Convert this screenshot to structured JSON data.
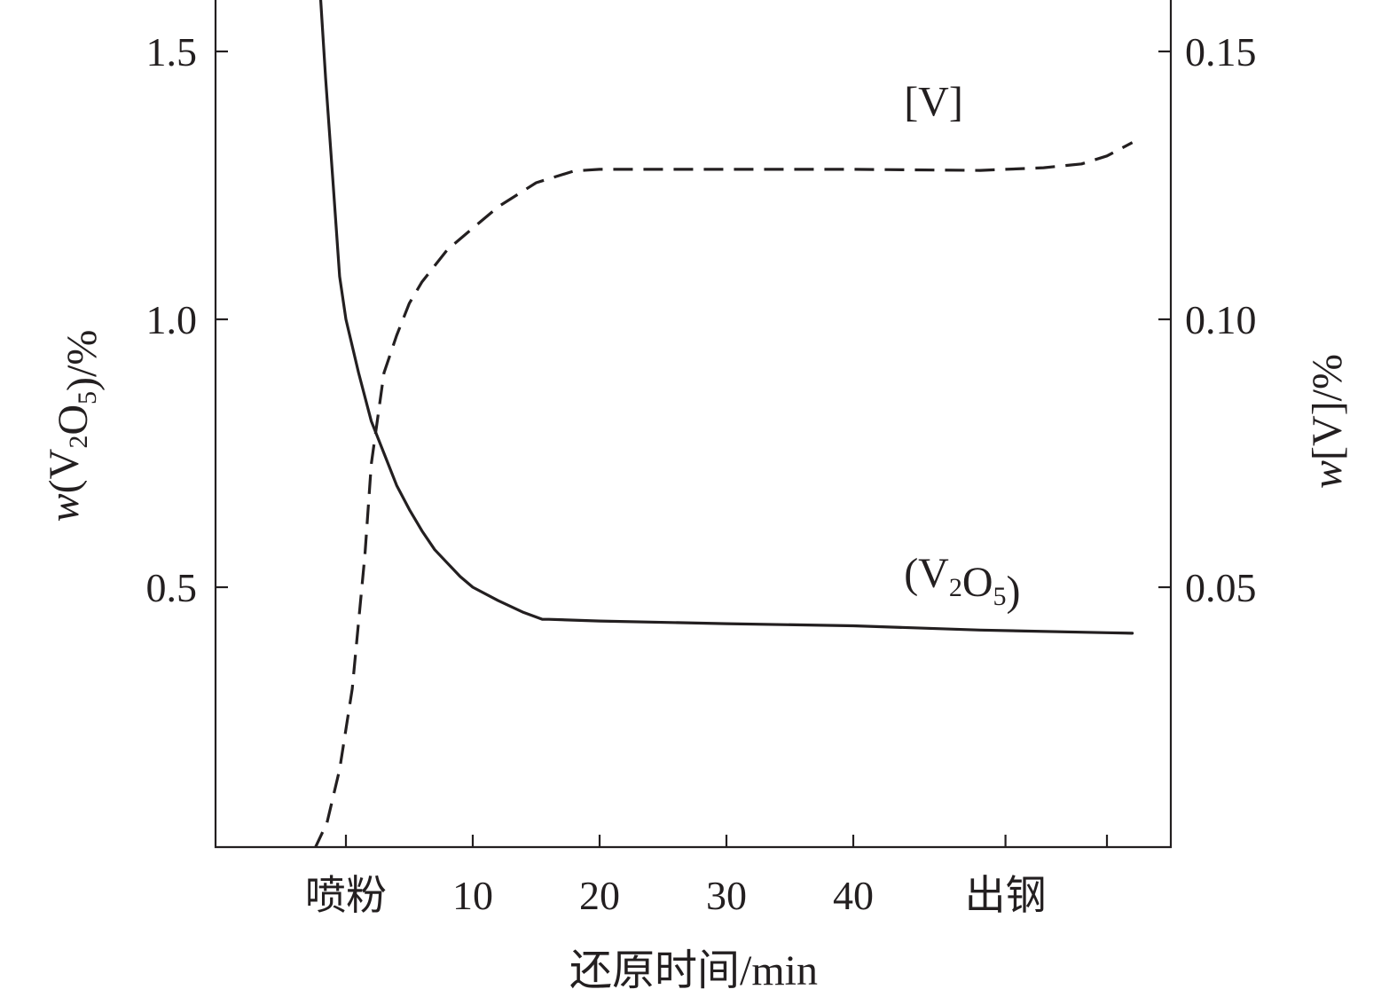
{
  "chart_data": {
    "type": "line",
    "xlabel": "还原时间/min",
    "ylabel_left": "w(V2O5)/%",
    "ylabel_right": "w[V]/%",
    "xlim": [
      -10,
      65
    ],
    "ylim_left": [
      0.01,
      1.6
    ],
    "ylim_right": [
      0.001,
      0.16
    ],
    "x_ticks": [
      {
        "value": 0,
        "label": "喷粉"
      },
      {
        "value": 10,
        "label": "10"
      },
      {
        "value": 20,
        "label": "20"
      },
      {
        "value": 30,
        "label": "30"
      },
      {
        "value": 40,
        "label": "40"
      },
      {
        "value": 52,
        "label": "出钢"
      },
      {
        "value": 60,
        "label": ""
      }
    ],
    "y_ticks_left": [
      {
        "value": 0.5,
        "label": "0.5"
      },
      {
        "value": 1.0,
        "label": "1.0"
      },
      {
        "value": 1.5,
        "label": "1.5"
      }
    ],
    "y_ticks_right": [
      {
        "value": 0.05,
        "label": "0.05"
      },
      {
        "value": 0.1,
        "label": "0.10"
      },
      {
        "value": 0.15,
        "label": "0.15"
      }
    ],
    "series": [
      {
        "name": "(V2O5)",
        "axis": "left",
        "style": "solid",
        "x": [
          -2.0,
          -1.6,
          -1.0,
          -0.5,
          0.0,
          1.0,
          2.0,
          3.0,
          4.0,
          5.0,
          6.0,
          7.0,
          8.0,
          9.0,
          10.0,
          12.0,
          14.0,
          15.5,
          16.0,
          20.0,
          30.0,
          40.0,
          50.0,
          60.0,
          62.0
        ],
        "y": [
          1.6,
          1.45,
          1.25,
          1.08,
          1.0,
          0.9,
          0.81,
          0.75,
          0.69,
          0.645,
          0.605,
          0.57,
          0.545,
          0.52,
          0.5,
          0.475,
          0.453,
          0.44,
          0.44,
          0.437,
          0.432,
          0.428,
          0.42,
          0.415,
          0.414
        ]
      },
      {
        "name": "[V]",
        "axis": "right",
        "style": "dashed",
        "x": [
          -2.5,
          -1.5,
          -0.5,
          0.5,
          1.5,
          2.0,
          3.0,
          4.0,
          5.0,
          6.0,
          8.0,
          10.0,
          12.0,
          15.0,
          18.0,
          20.0,
          30.0,
          40.0,
          50.0,
          55.0,
          58.0,
          60.0,
          62.0
        ],
        "y": [
          0.001,
          0.006,
          0.016,
          0.031,
          0.056,
          0.073,
          0.09,
          0.097,
          0.103,
          0.107,
          0.113,
          0.117,
          0.121,
          0.1255,
          0.1277,
          0.128,
          0.128,
          0.128,
          0.1278,
          0.1283,
          0.129,
          0.1305,
          0.133
        ]
      }
    ],
    "annotations": [
      {
        "key": "v_label",
        "parts": [
          {
            "text": "[V]",
            "sub": false
          }
        ],
        "at_x": 44.0,
        "at_y_right": 0.138
      },
      {
        "key": "v2o5_label",
        "parts": [
          {
            "text": "(V",
            "sub": false
          },
          {
            "text": "2",
            "sub": true
          },
          {
            "text": "O",
            "sub": false
          },
          {
            "text": "5",
            "sub": true
          },
          {
            "text": ")",
            "sub": false
          }
        ],
        "at_x": 44.0,
        "at_y_left": 0.5
      }
    ],
    "grid": false,
    "legend": "none"
  }
}
